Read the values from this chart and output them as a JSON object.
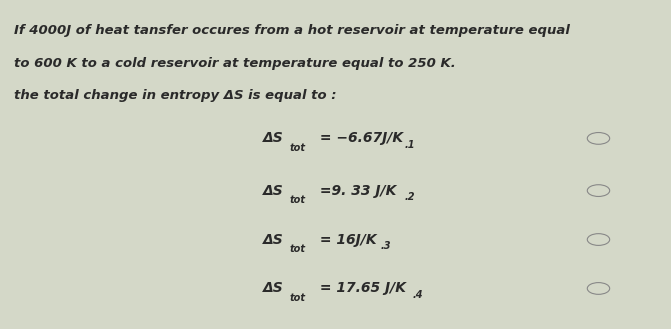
{
  "bg_color": "#d4d8c8",
  "text_color": "#1a1a1a",
  "dark_color": "#2a2a2a",
  "question_lines": [
    "If 4000J of heat tansfer occures from a hot reservoir at temperature equal",
    "to 600 K to a cold reservoir at temperature equal to 250 K.",
    "the total change in entropy ΔS is equal to :"
  ],
  "options": [
    {
      "prefix": "ΔS",
      "sub": "tot",
      "body": " = −6.67J/K",
      "num": ".1",
      "circle": true
    },
    {
      "prefix": "ΔS",
      "sub": "tot",
      "body": " =9. 33 J/K",
      "num": ".2",
      "circle": true
    },
    {
      "prefix": "ΔS",
      "sub": "tot",
      "body": " = 16J/K",
      "num": ".3",
      "circle": true
    },
    {
      "prefix": "ΔS",
      "sub": "tot",
      "body": " = 17.65 J/K",
      "num": ".4",
      "circle": true
    }
  ],
  "figsize": [
    6.71,
    3.29
  ],
  "dpi": 100
}
